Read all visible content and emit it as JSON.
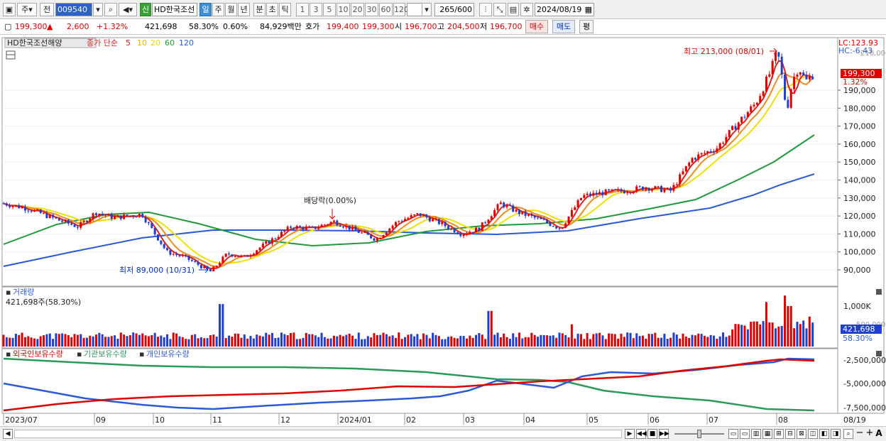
{
  "toolbar": {
    "period_select": "주",
    "prev_label": "전",
    "code": "009540",
    "badge": "신",
    "stock_name": "HD한국조선",
    "periods": [
      "일",
      "주",
      "월",
      "년",
      "분",
      "초",
      "틱"
    ],
    "active_period": "일",
    "intervals": [
      "1",
      "3",
      "5",
      "10",
      "20",
      "30",
      "60",
      "120"
    ],
    "count": "265",
    "total": "/600",
    "date": "2024/08/19"
  },
  "quote": {
    "price": "199,300",
    "change_arrow": "▲",
    "change": "2,600",
    "change_pct": "+1.32%",
    "volume": "421,698",
    "vol_ratio": "58.30%",
    "turnover_pct": "0.60%",
    "amount": "84,929백만",
    "hoga_label": "호가",
    "ask": "199,400",
    "bid": "199,300",
    "open_label": "시",
    "open": "196,700",
    "high_label": "고",
    "high": "204,500",
    "low_label": "저",
    "low": "196,700",
    "buy_label": "매수",
    "sell_label": "매도",
    "eval_label": "평"
  },
  "price_panel": {
    "legend_name": "HD한국조선해양",
    "legend_ma_label": "종가 단순",
    "legend_mas": [
      "5",
      "10",
      "20",
      "60",
      "120"
    ],
    "lc_label": "LC:123.93",
    "hc_label": "HC:-6.43",
    "current_price": "199,300",
    "current_pct": "1.32%",
    "high_annotation": "최고 213,000 (08/01)",
    "low_annotation": "최저 89,000 (10/31)",
    "dividend_annotation": "배당락(0.00%)",
    "y_labels": [
      "190,000",
      "180,000",
      "170,000",
      "160,000",
      "150,000",
      "140,000",
      "130,000",
      "120,000",
      "110,000",
      "100,000",
      "90,000"
    ],
    "y_partial_label": "210,000"
  },
  "volume_panel": {
    "title": "거래량",
    "value_label": "421,698주(58.30%)",
    "y_label": "1,000K",
    "current_volume": "421,698",
    "current_pct": "58.30%",
    "partial_label": "500,000"
  },
  "holding_panel": {
    "legend": [
      "외국인보유수량",
      "기관보유수량",
      "개인보유수량"
    ],
    "y_labels": [
      "-2,500,000",
      "-5,000,000",
      "-7,500,000"
    ]
  },
  "x_axis": [
    "2023/07",
    "09",
    "10",
    "11",
    "12",
    "2024/01",
    "02",
    "03",
    "04",
    "05",
    "06",
    "07",
    "08"
  ],
  "x_right_label": "08/19",
  "colors": {
    "up": "#e00000",
    "down": "#1f3fd0",
    "ma5": "#e02020",
    "ma10": "#f08c1c",
    "ma20": "#f0e000",
    "ma60": "#1e9a3a",
    "ma120": "#2a5ad8",
    "foreign": "#e00000",
    "institution": "#2a9a5a",
    "individual": "#2a5ad8"
  }
}
